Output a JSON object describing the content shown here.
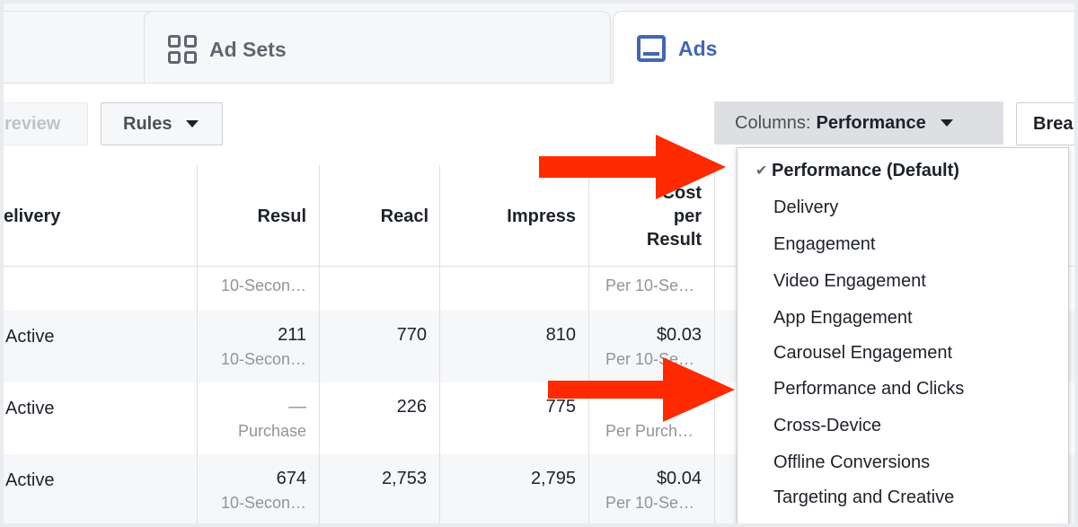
{
  "tabs": {
    "adsets_label": "Ad Sets",
    "ads_label": "Ads"
  },
  "toolbar": {
    "preview_label": "review",
    "rules_label": "Rules",
    "columns_prefix": "Columns:",
    "columns_value": "Performance",
    "breakdown_label": "Brea"
  },
  "table": {
    "headers": [
      "elivery",
      "Resul",
      "Reacl",
      "Impress",
      "Cost per Result"
    ],
    "cost_header_lines": [
      "Cost",
      "per",
      "Result"
    ],
    "rows": [
      {
        "status": "",
        "results": "",
        "results_sub": "10-Secon…",
        "reach": "",
        "impressions": "",
        "cost": "",
        "cost_sub": "Per 10-Se…"
      },
      {
        "status": "Active",
        "results": "211",
        "results_sub": "10-Secon…",
        "reach": "770",
        "impressions": "810",
        "cost": "$0.03",
        "cost_sub": "Per 10-Se…"
      },
      {
        "status": "Active",
        "results": "—",
        "results_sub": "Purchase",
        "reach": "226",
        "impressions": "775",
        "cost": "",
        "cost_sub": "Per Purch…"
      },
      {
        "status": "Active",
        "results": "674",
        "results_sub": "10-Secon…",
        "reach": "2,753",
        "impressions": "2,795",
        "cost": "$0.04",
        "cost_sub": "Per 10-Se…"
      }
    ]
  },
  "columns_menu": {
    "check_glyph": "✔",
    "items": [
      {
        "label": "Performance (Default)",
        "selected": true
      },
      {
        "label": "Delivery"
      },
      {
        "label": "Engagement"
      },
      {
        "label": "Video Engagement"
      },
      {
        "label": "App Engagement"
      },
      {
        "label": "Carousel Engagement"
      },
      {
        "label": "Performance and Clicks"
      },
      {
        "label": "Cross-Device"
      },
      {
        "label": "Offline Conversions"
      },
      {
        "label": "Targeting and Creative"
      }
    ]
  },
  "colors": {
    "accent": "#4267b2",
    "arrow": "#ff2a00"
  }
}
